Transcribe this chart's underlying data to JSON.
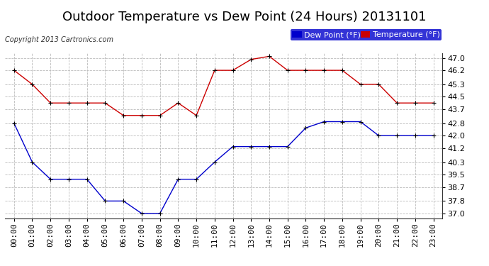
{
  "title": "Outdoor Temperature vs Dew Point (24 Hours) 20131101",
  "copyright": "Copyright 2013 Cartronics.com",
  "background_color": "#ffffff",
  "plot_bg_color": "#ffffff",
  "grid_color": "#bbbbbb",
  "x_labels": [
    "00:00",
    "01:00",
    "02:00",
    "03:00",
    "04:00",
    "05:00",
    "06:00",
    "07:00",
    "08:00",
    "09:00",
    "10:00",
    "11:00",
    "12:00",
    "13:00",
    "14:00",
    "15:00",
    "16:00",
    "17:00",
    "18:00",
    "19:00",
    "20:00",
    "21:00",
    "22:00",
    "23:00"
  ],
  "y_ticks": [
    37.0,
    37.8,
    38.7,
    39.5,
    40.3,
    41.2,
    42.0,
    42.8,
    43.7,
    44.5,
    45.3,
    46.2,
    47.0
  ],
  "ylim": [
    36.7,
    47.3
  ],
  "temperature": [
    46.2,
    45.3,
    44.1,
    44.1,
    44.1,
    44.1,
    43.3,
    43.3,
    43.3,
    44.1,
    43.3,
    46.2,
    46.2,
    46.9,
    47.1,
    46.2,
    46.2,
    46.2,
    46.2,
    45.3,
    45.3,
    44.1,
    44.1,
    44.1
  ],
  "dew_point": [
    42.8,
    40.3,
    39.2,
    39.2,
    39.2,
    37.8,
    37.8,
    37.0,
    37.0,
    39.2,
    39.2,
    40.3,
    41.3,
    41.3,
    41.3,
    41.3,
    42.5,
    42.9,
    42.9,
    42.9,
    42.0,
    42.0,
    42.0,
    42.0
  ],
  "temp_color": "#cc0000",
  "dew_color": "#0000cc",
  "legend_dew_bg": "#0000cc",
  "legend_temp_bg": "#cc0000",
  "title_fontsize": 13,
  "tick_fontsize": 8,
  "copyright_fontsize": 7,
  "legend_fontsize": 8
}
